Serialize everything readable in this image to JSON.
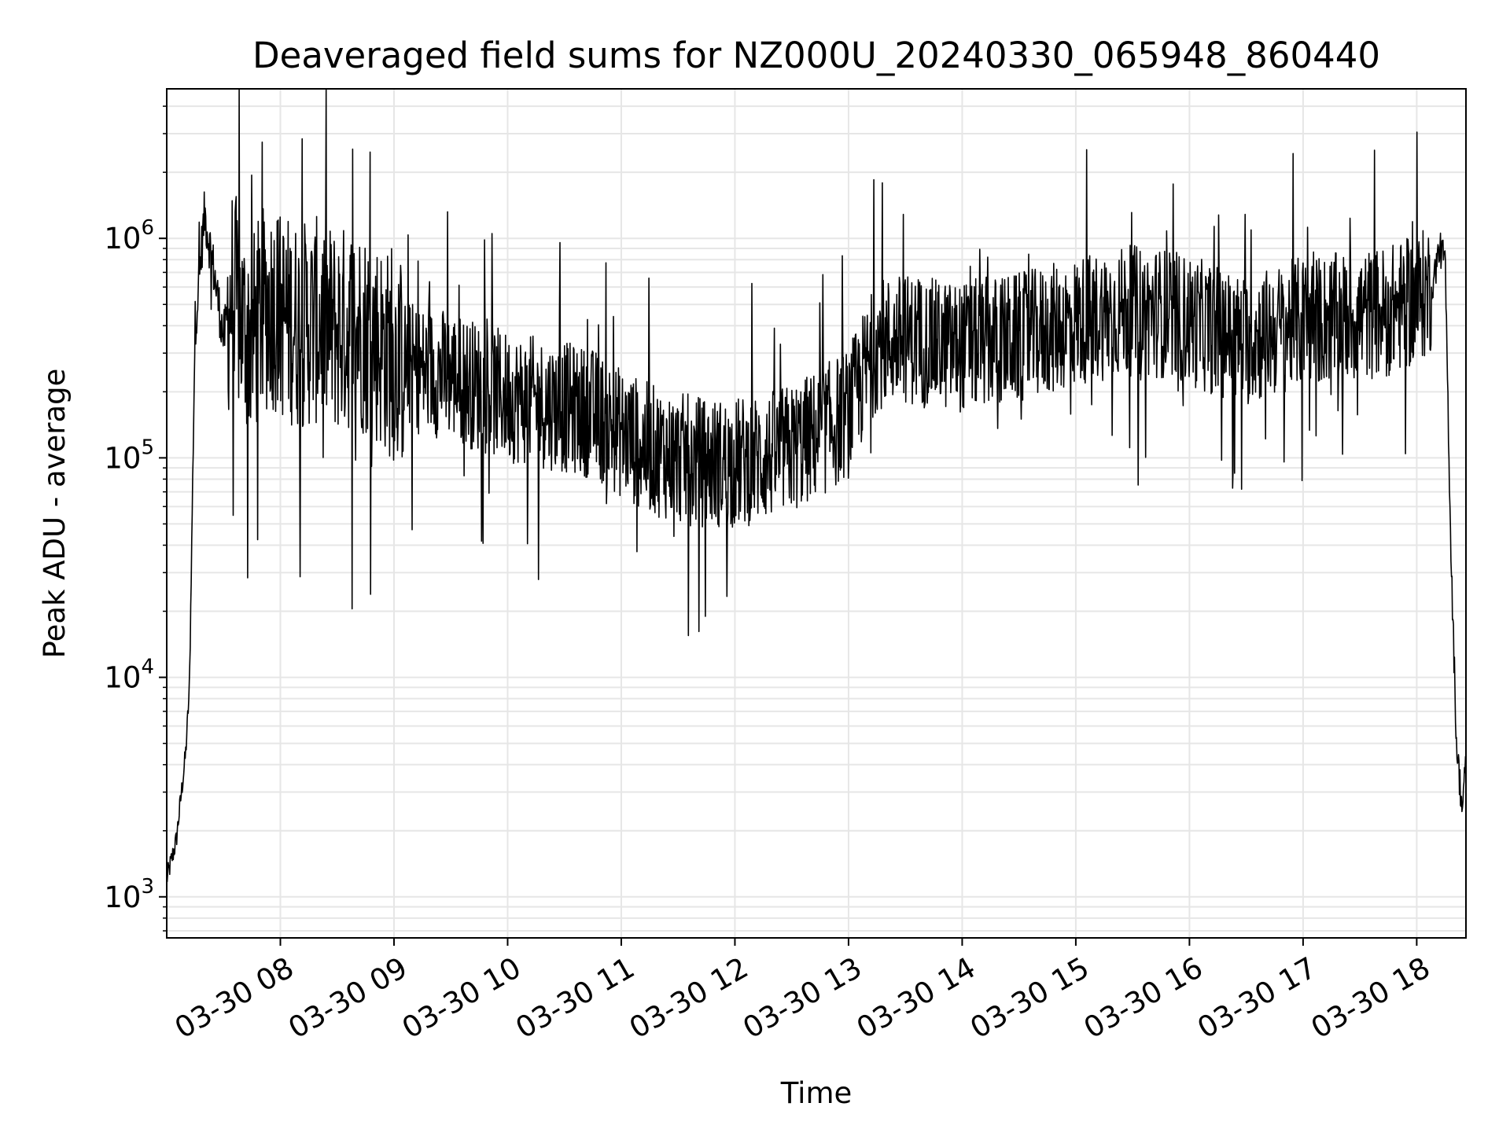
{
  "chart_data": {
    "type": "line",
    "title": "Deaveraged field sums for NZ000U_20240330_065948_860440",
    "xlabel": "Time",
    "ylabel": "Peak ADU - average",
    "yscale": "log",
    "grid": true,
    "line_color": "#000000",
    "grid_color": "#e6e6e6",
    "xlim": [
      "2024-03-30 07:00",
      "2024-03-30 18:26"
    ],
    "ylim": [
      650,
      4800000
    ],
    "x_ticks": [
      "03-30 08",
      "03-30 09",
      "03-30 10",
      "03-30 11",
      "03-30 12",
      "03-30 13",
      "03-30 14",
      "03-30 15",
      "03-30 16",
      "03-30 17",
      "03-30 18"
    ],
    "y_ticks": [
      {
        "base": "10",
        "exp": "3"
      },
      {
        "base": "10",
        "exp": "4"
      },
      {
        "base": "10",
        "exp": "5"
      },
      {
        "base": "10",
        "exp": "6"
      }
    ],
    "series": [
      {
        "x": [
          "2024-03-30 07:00",
          "2024-03-30 07:05",
          "2024-03-30 07:10",
          "2024-03-30 07:12",
          "2024-03-30 07:15",
          "2024-03-30 07:20",
          "2024-03-30 07:25",
          "2024-03-30 07:30",
          "2024-03-30 07:35",
          "2024-03-30 07:40",
          "2024-03-30 07:45",
          "2024-03-30 07:50",
          "2024-03-30 07:55",
          "2024-03-30 08:00",
          "2024-03-30 08:10",
          "2024-03-30 08:20",
          "2024-03-30 08:30",
          "2024-03-30 08:40",
          "2024-03-30 08:50",
          "2024-03-30 09:00",
          "2024-03-30 09:15",
          "2024-03-30 09:30",
          "2024-03-30 09:45",
          "2024-03-30 10:00",
          "2024-03-30 10:15",
          "2024-03-30 10:30",
          "2024-03-30 10:45",
          "2024-03-30 11:00",
          "2024-03-30 11:15",
          "2024-03-30 11:30",
          "2024-03-30 11:45",
          "2024-03-30 12:00",
          "2024-03-30 12:15",
          "2024-03-30 12:30",
          "2024-03-30 12:45",
          "2024-03-30 13:00",
          "2024-03-30 13:15",
          "2024-03-30 13:30",
          "2024-03-30 13:45",
          "2024-03-30 14:00",
          "2024-03-30 14:15",
          "2024-03-30 14:30",
          "2024-03-30 14:45",
          "2024-03-30 15:00",
          "2024-03-30 15:15",
          "2024-03-30 15:30",
          "2024-03-30 15:45",
          "2024-03-30 16:00",
          "2024-03-30 16:15",
          "2024-03-30 16:30",
          "2024-03-30 16:45",
          "2024-03-30 17:00",
          "2024-03-30 17:15",
          "2024-03-30 17:30",
          "2024-03-30 17:45",
          "2024-03-30 18:00",
          "2024-03-30 18:08",
          "2024-03-30 18:12",
          "2024-03-30 18:15",
          "2024-03-30 18:18",
          "2024-03-30 18:21",
          "2024-03-30 18:24",
          "2024-03-30 18:26"
        ],
        "y": [
          1200,
          1800,
          4500,
          9000,
          400000,
          1300000,
          700000,
          350000,
          600000,
          400000,
          350000,
          450000,
          500000,
          450000,
          400000,
          420000,
          380000,
          400000,
          350000,
          280000,
          250000,
          240000,
          210000,
          190000,
          180000,
          170000,
          160000,
          130000,
          110000,
          100000,
          95000,
          95000,
          100000,
          110000,
          130000,
          160000,
          330000,
          350000,
          330000,
          320000,
          340000,
          350000,
          380000,
          420000,
          450000,
          470000,
          460000,
          420000,
          380000,
          340000,
          380000,
          420000,
          430000,
          440000,
          470000,
          520000,
          600000,
          900000,
          800000,
          40000,
          5000,
          2500,
          4000
        ]
      }
    ]
  }
}
